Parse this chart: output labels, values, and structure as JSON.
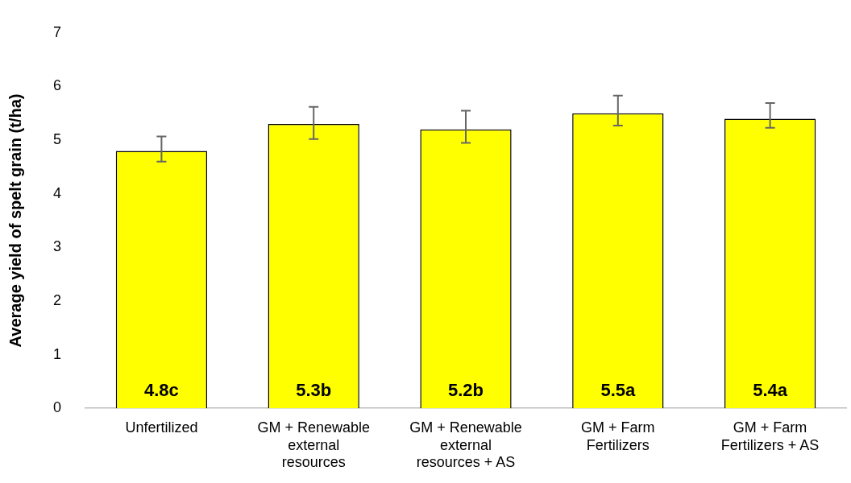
{
  "chart_data": {
    "type": "bar",
    "ylabel": "Average yield of spelt grain (t/ha)",
    "categories": [
      "Unfertilized",
      "GM + Renewable external resources",
      "GM + Renewable external resources + AS",
      "GM + Farm Fertilizers",
      "GM + Farm Fertilizers + AS"
    ],
    "values": [
      4.8,
      5.3,
      5.2,
      5.5,
      5.4
    ],
    "errors": [
      [
        4.6,
        5.07
      ],
      [
        5.02,
        5.62
      ],
      [
        4.95,
        5.55
      ],
      [
        5.27,
        5.83
      ],
      [
        5.23,
        5.69
      ]
    ],
    "value_labels": [
      "4.8c",
      "5.3b",
      "5.2b",
      "5.5a",
      "5.4a"
    ],
    "color": "#ffff00",
    "ylim": [
      0,
      7
    ],
    "yticks": [
      0,
      1,
      2,
      3,
      4,
      5,
      6,
      7
    ],
    "grid": false,
    "legend": false
  }
}
